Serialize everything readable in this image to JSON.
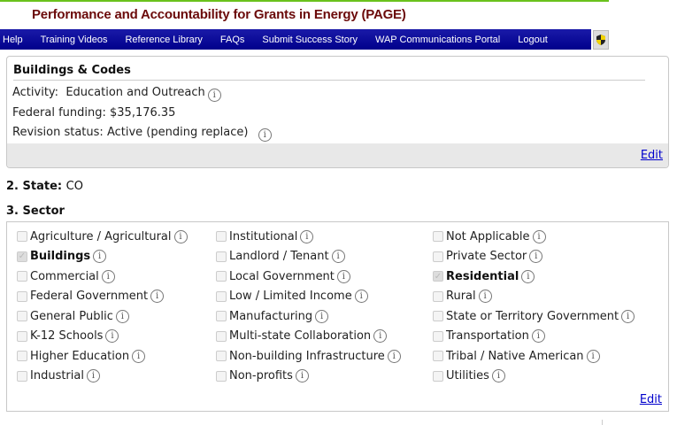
{
  "header": {
    "title": "Performance and Accountability for Grants in Energy (PAGE)",
    "accent_color": "#6ac21c"
  },
  "nav": {
    "items": [
      "Help",
      "Training Videos",
      "Reference Library",
      "FAQs",
      "Submit Success Story",
      "WAP Communications Portal",
      "Logout"
    ],
    "icon": "shield-icon"
  },
  "summary": {
    "title": "Buildings & Codes",
    "activity_label": "Activity:",
    "activity_value": "Education and Outreach",
    "funding_label": "Federal funding:",
    "funding_value": "$35,176.35",
    "revision_label": "Revision status:",
    "revision_value": "Active (pending replace)",
    "edit": "Edit"
  },
  "state": {
    "label": "2. State:",
    "value": "CO"
  },
  "sector": {
    "label": "3. Sector",
    "edit": "Edit",
    "columns": [
      [
        {
          "label": "Agriculture / Agricultural",
          "checked": false
        },
        {
          "label": "Buildings",
          "checked": true
        },
        {
          "label": "Commercial",
          "checked": false
        },
        {
          "label": "Federal Government",
          "checked": false
        },
        {
          "label": "General Public",
          "checked": false
        },
        {
          "label": "K-12 Schools",
          "checked": false
        },
        {
          "label": "Higher Education",
          "checked": false
        },
        {
          "label": "Industrial",
          "checked": false
        }
      ],
      [
        {
          "label": "Institutional",
          "checked": false
        },
        {
          "label": "Landlord / Tenant",
          "checked": false
        },
        {
          "label": "Local Government",
          "checked": false
        },
        {
          "label": "Low / Limited Income",
          "checked": false
        },
        {
          "label": "Manufacturing",
          "checked": false
        },
        {
          "label": "Multi-state Collaboration",
          "checked": false
        },
        {
          "label": "Non-building Infrastructure",
          "checked": false
        },
        {
          "label": "Non-profits",
          "checked": false
        }
      ],
      [
        {
          "label": "Not Applicable",
          "checked": false
        },
        {
          "label": "Private Sector",
          "checked": false
        },
        {
          "label": "Residential",
          "checked": true
        },
        {
          "label": "Rural",
          "checked": false
        },
        {
          "label": "State or Territory Government",
          "checked": false
        },
        {
          "label": "Transportation",
          "checked": false
        },
        {
          "label": "Tribal / Native American",
          "checked": false
        },
        {
          "label": "Utilities",
          "checked": false
        }
      ]
    ]
  }
}
